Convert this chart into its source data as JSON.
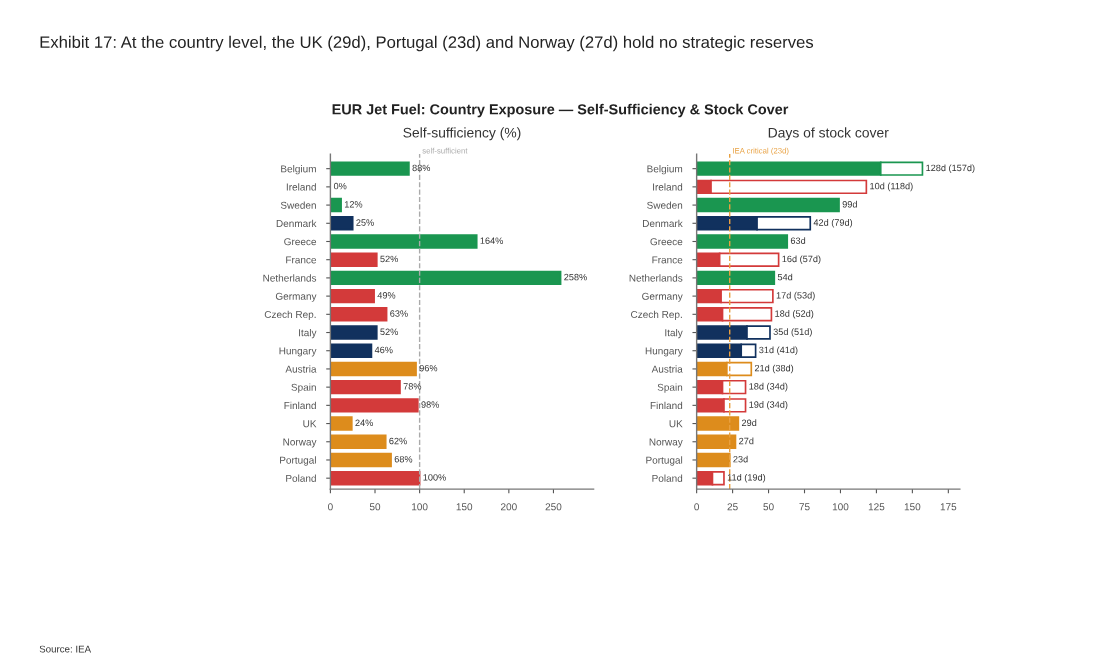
{
  "chart_data": [
    {
      "type": "bar",
      "orientation": "horizontal",
      "title": "Self-sufficiency (%)",
      "annotations": [
        "Exhibit 17: At the country level, the UK (29d), Portugal (23d) and Norway (27d) hold no strategic reserves",
        "EUR Jet Fuel: Country Exposure — Self-Sufficiency & Stock Cover",
        "Source: IEA"
      ],
      "categories": [
        "Belgium",
        "Ireland",
        "Sweden",
        "Denmark",
        "Greece",
        "France",
        "Netherlands",
        "Germany",
        "Czech Rep.",
        "Italy",
        "Hungary",
        "Austria",
        "Spain",
        "Finland",
        "UK",
        "Norway",
        "Portugal",
        "Poland"
      ],
      "values": [
        88,
        0,
        12,
        25,
        164,
        52,
        258,
        49,
        63,
        52,
        46,
        96,
        78,
        98,
        24,
        62,
        68,
        100
      ],
      "value_labels": [
        "88%",
        "0%",
        "12%",
        "25%",
        "164%",
        "52%",
        "258%",
        "49%",
        "63%",
        "52%",
        "46%",
        "96%",
        "78%",
        "98%",
        "24%",
        "62%",
        "68%",
        "100%"
      ],
      "colors": [
        "#1a9650",
        "#d33a3a",
        "#1a9650",
        "#11315e",
        "#1a9650",
        "#d33a3a",
        "#1a9650",
        "#d33a3a",
        "#d33a3a",
        "#11315e",
        "#11315e",
        "#dd8c1c",
        "#d33a3a",
        "#d33a3a",
        "#dd8c1c",
        "#dd8c1c",
        "#dd8c1c",
        "#d33a3a"
      ],
      "xlim": [
        0,
        295
      ],
      "xticks": [
        0,
        50,
        100,
        150,
        200,
        250
      ],
      "ref_lines": [
        {
          "axis": "x",
          "value": 100,
          "label": "self-sufficient",
          "color": "#aaaaaa",
          "line_style": "dashed"
        }
      ],
      "grid": false,
      "legend": false
    },
    {
      "type": "bar",
      "orientation": "horizontal",
      "stacked": true,
      "title": "Days of stock cover",
      "categories": [
        "Belgium",
        "Ireland",
        "Sweden",
        "Denmark",
        "Greece",
        "France",
        "Netherlands",
        "Germany",
        "Czech Rep.",
        "Italy",
        "Hungary",
        "Austria",
        "Spain",
        "Finland",
        "UK",
        "Norway",
        "Portugal",
        "Poland"
      ],
      "series": [
        {
          "colors": [
            "#1a9650",
            "#d33a3a",
            "#1a9650",
            "#11315e",
            "#1a9650",
            "#d33a3a",
            "#1a9650",
            "#d33a3a",
            "#d33a3a",
            "#11315e",
            "#11315e",
            "#dd8c1c",
            "#d33a3a",
            "#d33a3a",
            "#dd8c1c",
            "#dd8c1c",
            "#dd8c1c",
            "#d33a3a"
          ],
          "values": [
            128,
            10,
            99,
            42,
            63,
            16,
            54,
            17,
            18,
            35,
            31,
            21,
            18,
            19,
            29,
            27,
            23,
            11
          ]
        },
        {
          "color": "#ffffff",
          "values": [
            29,
            108,
            0,
            37,
            0,
            41,
            0,
            36,
            34,
            16,
            10,
            17,
            16,
            15,
            0,
            0,
            0,
            8
          ]
        }
      ],
      "value_labels": [
        "128d (157d)",
        "10d (118d)",
        "99d",
        "42d (79d)",
        "63d",
        "16d (57d)",
        "54d",
        "17d (53d)",
        "18d (52d)",
        "35d (51d)",
        "31d (41d)",
        "21d (38d)",
        "18d (34d)",
        "19d (34d)",
        "29d",
        "27d",
        "23d",
        "11d (19d)"
      ],
      "xlim": [
        0,
        183
      ],
      "xticks": [
        0,
        25,
        50,
        75,
        100,
        125,
        150,
        175
      ],
      "ref_lines": [
        {
          "axis": "x",
          "value": 23,
          "label": "IEA critical (23d)",
          "color": "#e8a040",
          "line_style": "dashed"
        }
      ],
      "grid": false,
      "legend": false
    }
  ]
}
